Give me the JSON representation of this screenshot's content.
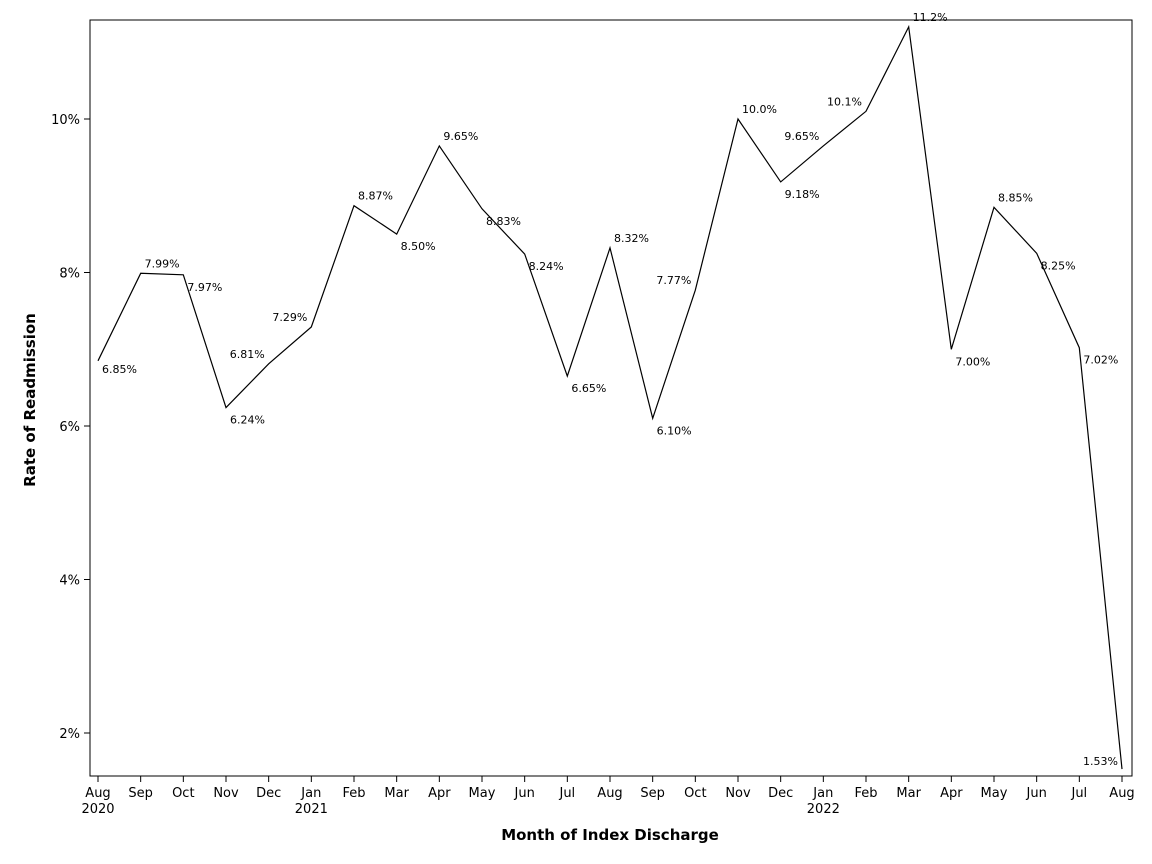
{
  "chart_data": {
    "type": "line",
    "xlabel": "Month of Index Discharge",
    "ylabel": "Rate of Readmission",
    "ylim": [
      1.5,
      11.3
    ],
    "yticks": [
      {
        "value": 2,
        "label": "2%"
      },
      {
        "value": 4,
        "label": "4%"
      },
      {
        "value": 6,
        "label": "6%"
      },
      {
        "value": 8,
        "label": "8%"
      },
      {
        "value": 10,
        "label": "10%"
      }
    ],
    "grid": false,
    "x": [
      "Aug 2020",
      "Sep 2020",
      "Oct 2020",
      "Nov 2020",
      "Dec 2020",
      "Jan 2021",
      "Feb 2021",
      "Mar 2021",
      "Apr 2021",
      "May 2021",
      "Jun 2021",
      "Jul 2021",
      "Aug 2021",
      "Sep 2021",
      "Oct 2021",
      "Nov 2021",
      "Dec 2021",
      "Jan 2022",
      "Feb 2022",
      "Mar 2022",
      "Apr 2022",
      "May 2022",
      "Jun 2022",
      "Jul 2022",
      "Aug 2022"
    ],
    "xtick_month": [
      "Aug",
      "Sep",
      "Oct",
      "Nov",
      "Dec",
      "Jan",
      "Feb",
      "Mar",
      "Apr",
      "May",
      "Jun",
      "Jul",
      "Aug",
      "Sep",
      "Oct",
      "Nov",
      "Dec",
      "Jan",
      "Feb",
      "Mar",
      "Apr",
      "May",
      "Jun",
      "Jul",
      "Aug"
    ],
    "xtick_year": [
      "2020",
      "",
      "",
      "",
      "",
      "2021",
      "",
      "",
      "",
      "",
      "",
      "",
      "",
      "",
      "",
      "",
      "",
      "2022",
      "",
      "",
      "",
      "",
      "",
      "",
      ""
    ],
    "values": [
      6.85,
      7.99,
      7.97,
      6.24,
      6.81,
      7.29,
      8.87,
      8.5,
      9.65,
      8.83,
      8.24,
      6.65,
      8.32,
      6.1,
      7.77,
      10.0,
      9.18,
      9.65,
      10.1,
      11.2,
      7.0,
      8.85,
      8.25,
      7.02,
      1.53
    ],
    "data_labels": [
      "6.85%",
      "7.99%",
      "7.97%",
      "6.24%",
      "6.81%",
      "7.29%",
      "8.87%",
      "8.50%",
      "9.65%",
      "8.83%",
      "8.24%",
      "6.65%",
      "8.32%",
      "6.10%",
      "7.77%",
      "10.0%",
      "9.18%",
      "9.65%",
      "10.1%",
      "11.2%",
      "7.00%",
      "8.85%",
      "8.25%",
      "7.02%",
      "1.53%"
    ]
  }
}
